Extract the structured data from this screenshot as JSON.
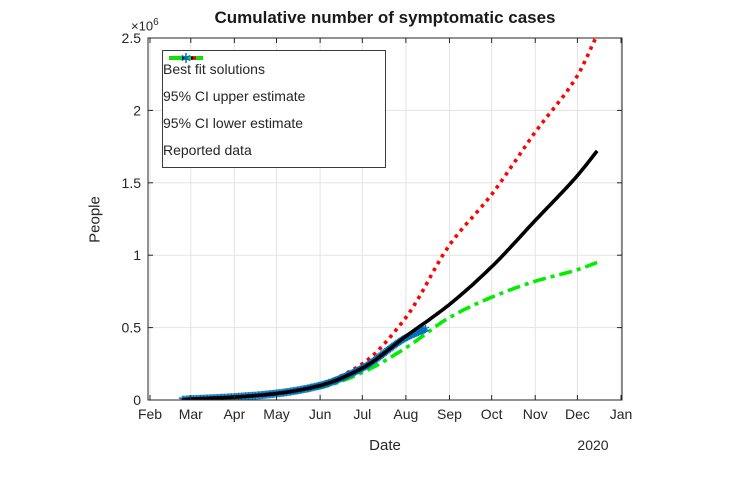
{
  "chart_data": {
    "type": "line",
    "title": "Cumulative number of symptomatic cases",
    "xlabel": "Date",
    "ylabel": "People",
    "year_label": "2020",
    "y_exponent": {
      "base": "×10",
      "power": "6"
    },
    "x_axis": {
      "unit": "days since 2020-02-01",
      "tick_days": [
        0,
        29,
        60,
        90,
        121,
        151,
        182,
        213,
        243,
        274,
        304,
        335
      ],
      "tick_labels": [
        "Feb",
        "Mar",
        "Apr",
        "May",
        "Jun",
        "Jul",
        "Aug",
        "Sep",
        "Oct",
        "Nov",
        "Dec",
        "Jan"
      ],
      "range_days": [
        0,
        335
      ]
    },
    "y_axis": {
      "ticks": [
        0,
        0.5,
        1,
        1.5,
        2,
        2.5
      ],
      "tick_labels": [
        "0",
        "0.5",
        "1",
        "1.5",
        "2",
        "2.5"
      ],
      "range": [
        0,
        2.5
      ],
      "scale": "millions of people"
    },
    "grid": true,
    "legend": {
      "position": "northwest"
    },
    "series": [
      {
        "name": "Best fit solutions",
        "type": "line",
        "style": "solid",
        "color": "#000000",
        "width": 3.6,
        "x_days": [
          23,
          29,
          60,
          90,
          121,
          151,
          182,
          213,
          243,
          274,
          304,
          318
        ],
        "y_millions": [
          0.002,
          0.006,
          0.02,
          0.045,
          0.1,
          0.22,
          0.44,
          0.66,
          0.92,
          1.24,
          1.55,
          1.72
        ]
      },
      {
        "name": "95% CI upper estimate",
        "type": "line",
        "style": "dotted",
        "color": "#ff0000",
        "width": 3.6,
        "x_days": [
          23,
          29,
          60,
          90,
          121,
          151,
          182,
          213,
          243,
          274,
          304,
          317
        ],
        "y_millions": [
          0.002,
          0.006,
          0.021,
          0.05,
          0.11,
          0.25,
          0.57,
          1.07,
          1.42,
          1.85,
          2.24,
          2.5
        ]
      },
      {
        "name": "95% CI lower estimate",
        "type": "line",
        "style": "dashdot",
        "color": "#00ee00",
        "width": 3.6,
        "x_days": [
          23,
          29,
          60,
          90,
          121,
          151,
          182,
          213,
          243,
          274,
          304,
          318
        ],
        "y_millions": [
          0.002,
          0.005,
          0.018,
          0.04,
          0.085,
          0.19,
          0.36,
          0.57,
          0.71,
          0.82,
          0.9,
          0.95
        ]
      },
      {
        "name": "Reported data",
        "type": "scatter",
        "style": "asterisk",
        "color": "#0072bd",
        "marker_size": 4,
        "marker_every_days": 1,
        "x_days": [
          23,
          29,
          60,
          90,
          121,
          151,
          182,
          196
        ],
        "y_millions": [
          0.002,
          0.005,
          0.02,
          0.045,
          0.1,
          0.22,
          0.43,
          0.49
        ]
      }
    ]
  },
  "style": {
    "axis_color": "#262626",
    "grid_color": "#e3e3e3",
    "tick_font_px": 14,
    "background": "#ffffff"
  }
}
